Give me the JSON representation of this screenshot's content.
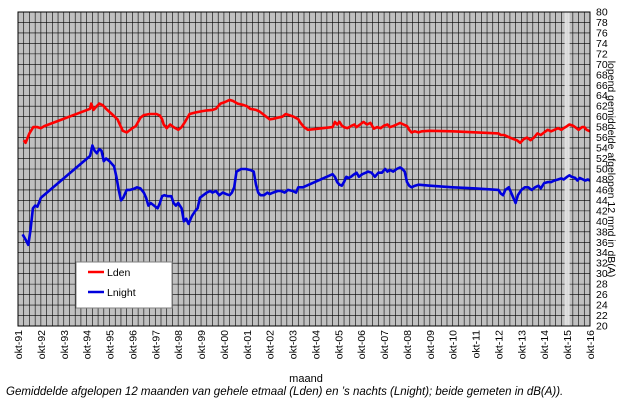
{
  "chart_data": {
    "type": "line",
    "xlabel": "maand",
    "ylabel": "lopend gemiddelde afgelopen 12 mnd in dB(A)",
    "ylim": [
      20,
      80
    ],
    "y_ticks": [
      20,
      22,
      24,
      26,
      28,
      30,
      32,
      34,
      36,
      38,
      40,
      42,
      44,
      46,
      48,
      50,
      52,
      54,
      56,
      58,
      60,
      62,
      64,
      66,
      68,
      70,
      72,
      74,
      76,
      78,
      80
    ],
    "x_tick_labels": [
      "okt-91",
      "okt-92",
      "okt-93",
      "okt-94",
      "okt-95",
      "okt-96",
      "okt-97",
      "okt-98",
      "okt-99",
      "okt-00",
      "okt-01",
      "okt-02",
      "okt-03",
      "okt-04",
      "okt-05",
      "okt-06",
      "okt-07",
      "okt-08",
      "okt-09",
      "okt-10",
      "okt-11",
      "okt-12",
      "okt-13",
      "okt-14",
      "okt-15",
      "okt-16"
    ],
    "x_ticks": [
      1991.75,
      1992.75,
      1993.75,
      1994.75,
      1995.75,
      1996.75,
      1997.75,
      1998.75,
      1999.75,
      2000.75,
      2001.75,
      2002.75,
      2003.75,
      2004.75,
      2005.75,
      2006.75,
      2007.75,
      2008.75,
      2009.75,
      2010.75,
      2011.75,
      2012.75,
      2013.75,
      2014.75,
      2015.75,
      2016.75
    ],
    "xlim": [
      1991.75,
      2016.75
    ],
    "grid": true,
    "highlight_x": 2015.75,
    "legend_position": "lower-left",
    "series": [
      {
        "name": "Lden",
        "color": "#ff0000",
        "points": [
          [
            1992.0,
            55.5
          ],
          [
            1992.08,
            55.0
          ],
          [
            1992.25,
            56.8
          ],
          [
            1992.42,
            58.0
          ],
          [
            1992.6,
            58.0
          ],
          [
            1992.75,
            57.8
          ],
          [
            1992.9,
            58.2
          ],
          [
            1994.9,
            61.5
          ],
          [
            1994.95,
            62.5
          ],
          [
            1995.05,
            61.3
          ],
          [
            1995.15,
            61.8
          ],
          [
            1995.3,
            62.5
          ],
          [
            1995.45,
            62.2
          ],
          [
            1995.6,
            61.5
          ],
          [
            1995.85,
            60.5
          ],
          [
            1996.1,
            59.5
          ],
          [
            1996.2,
            58.5
          ],
          [
            1996.33,
            57.3
          ],
          [
            1996.5,
            57.0
          ],
          [
            1996.75,
            57.8
          ],
          [
            1996.9,
            58.2
          ],
          [
            1997.1,
            59.8
          ],
          [
            1997.25,
            60.3
          ],
          [
            1997.5,
            60.5
          ],
          [
            1997.8,
            60.5
          ],
          [
            1997.95,
            60.2
          ],
          [
            1998.05,
            59.5
          ],
          [
            1998.12,
            58.5
          ],
          [
            1998.25,
            57.8
          ],
          [
            1998.4,
            58.5
          ],
          [
            1998.55,
            58.0
          ],
          [
            1998.75,
            57.5
          ],
          [
            1998.9,
            58.0
          ],
          [
            1999.05,
            59.0
          ],
          [
            1999.25,
            60.5
          ],
          [
            1999.5,
            60.8
          ],
          [
            1999.75,
            61.0
          ],
          [
            2000.0,
            61.2
          ],
          [
            2000.25,
            61.3
          ],
          [
            2000.4,
            61.5
          ],
          [
            2000.6,
            62.5
          ],
          [
            2000.8,
            62.8
          ],
          [
            2001.0,
            63.2
          ],
          [
            2001.15,
            63.0
          ],
          [
            2001.35,
            62.5
          ],
          [
            2001.55,
            62.3
          ],
          [
            2001.75,
            62.0
          ],
          [
            2001.9,
            61.5
          ],
          [
            2002.15,
            61.3
          ],
          [
            2002.3,
            61.0
          ],
          [
            2002.45,
            60.5
          ],
          [
            2002.6,
            60.0
          ],
          [
            2002.75,
            59.5
          ],
          [
            2002.9,
            59.6
          ],
          [
            2003.1,
            59.8
          ],
          [
            2003.3,
            60.0
          ],
          [
            2003.45,
            60.5
          ],
          [
            2003.6,
            60.3
          ],
          [
            2003.8,
            60.0
          ],
          [
            2004.0,
            59.5
          ],
          [
            2004.1,
            58.8
          ],
          [
            2004.25,
            58.0
          ],
          [
            2004.42,
            57.5
          ],
          [
            2005.5,
            58.0
          ],
          [
            2005.6,
            59.0
          ],
          [
            2005.7,
            58.5
          ],
          [
            2005.8,
            59.0
          ],
          [
            2005.9,
            58.3
          ],
          [
            2006.0,
            58.0
          ],
          [
            2006.15,
            57.8
          ],
          [
            2006.3,
            58.2
          ],
          [
            2006.45,
            58.5
          ],
          [
            2006.55,
            58.0
          ],
          [
            2006.7,
            58.5
          ],
          [
            2006.85,
            59.0
          ],
          [
            2007.0,
            58.5
          ],
          [
            2007.15,
            58.8
          ],
          [
            2007.3,
            57.7
          ],
          [
            2007.45,
            58.0
          ],
          [
            2007.6,
            57.8
          ],
          [
            2007.75,
            58.3
          ],
          [
            2007.9,
            58.5
          ],
          [
            2008.0,
            58.0
          ],
          [
            2008.15,
            58.2
          ],
          [
            2008.3,
            58.5
          ],
          [
            2008.45,
            58.8
          ],
          [
            2008.6,
            58.5
          ],
          [
            2008.75,
            58.2
          ],
          [
            2008.85,
            57.5
          ],
          [
            2008.95,
            57.0
          ],
          [
            2009.1,
            57.2
          ],
          [
            2009.25,
            57.0
          ],
          [
            2009.4,
            57.2
          ],
          [
            2009.75,
            57.3
          ],
          [
            2010.75,
            57.2
          ],
          [
            2012.75,
            56.8
          ],
          [
            2012.85,
            56.5
          ],
          [
            2013.0,
            56.5
          ],
          [
            2013.15,
            56.2
          ],
          [
            2013.35,
            55.8
          ],
          [
            2013.55,
            55.5
          ],
          [
            2013.7,
            55.0
          ],
          [
            2013.85,
            55.7
          ],
          [
            2014.0,
            56.0
          ],
          [
            2014.15,
            55.5
          ],
          [
            2014.3,
            56.0
          ],
          [
            2014.45,
            56.8
          ],
          [
            2014.6,
            56.5
          ],
          [
            2014.75,
            57.0
          ],
          [
            2014.9,
            57.5
          ],
          [
            2015.05,
            57.2
          ],
          [
            2015.2,
            57.5
          ],
          [
            2015.35,
            57.8
          ],
          [
            2015.5,
            57.5
          ],
          [
            2015.6,
            57.8
          ],
          [
            2015.75,
            58.2
          ],
          [
            2015.85,
            58.5
          ],
          [
            2016.0,
            58.3
          ],
          [
            2016.1,
            58.0
          ],
          [
            2016.25,
            57.5
          ],
          [
            2016.4,
            58.0
          ],
          [
            2016.5,
            58.0
          ],
          [
            2016.6,
            57.5
          ],
          [
            2016.75,
            57.2
          ]
        ]
      },
      {
        "name": "Lnight",
        "color": "#0000dd",
        "points": [
          [
            1991.95,
            37.5
          ],
          [
            1992.08,
            36.5
          ],
          [
            1992.2,
            35.5
          ],
          [
            1992.3,
            38.5
          ],
          [
            1992.4,
            42.5
          ],
          [
            1992.5,
            43.0
          ],
          [
            1992.6,
            42.8
          ],
          [
            1992.75,
            44.5
          ],
          [
            1994.9,
            52.5
          ],
          [
            1995.0,
            54.5
          ],
          [
            1995.1,
            53.5
          ],
          [
            1995.2,
            53.0
          ],
          [
            1995.3,
            53.8
          ],
          [
            1995.4,
            53.5
          ],
          [
            1995.5,
            51.5
          ],
          [
            1995.6,
            52.0
          ],
          [
            1995.75,
            51.5
          ],
          [
            1995.85,
            51.0
          ],
          [
            1995.95,
            50.5
          ],
          [
            1996.05,
            48.5
          ],
          [
            1996.15,
            46.0
          ],
          [
            1996.25,
            44.0
          ],
          [
            1996.35,
            44.5
          ],
          [
            1996.5,
            46.0
          ],
          [
            1996.65,
            46.0
          ],
          [
            1996.8,
            46.2
          ],
          [
            1996.95,
            46.5
          ],
          [
            1997.1,
            46.3
          ],
          [
            1997.25,
            45.5
          ],
          [
            1997.35,
            44.5
          ],
          [
            1997.45,
            43.0
          ],
          [
            1997.55,
            43.5
          ],
          [
            1997.7,
            43.0
          ],
          [
            1997.85,
            42.5
          ],
          [
            1997.95,
            43.5
          ],
          [
            1998.05,
            44.8
          ],
          [
            1998.15,
            45.0
          ],
          [
            1998.3,
            44.8
          ],
          [
            1998.45,
            44.8
          ],
          [
            1998.55,
            43.5
          ],
          [
            1998.65,
            43.0
          ],
          [
            1998.75,
            43.5
          ],
          [
            1998.9,
            42.5
          ],
          [
            1999.0,
            40.0
          ],
          [
            1999.1,
            40.5
          ],
          [
            1999.2,
            39.5
          ],
          [
            1999.35,
            41.0
          ],
          [
            1999.5,
            42.0
          ],
          [
            1999.6,
            42.5
          ],
          [
            1999.7,
            44.5
          ],
          [
            1999.85,
            45.0
          ],
          [
            2000.0,
            45.5
          ],
          [
            2000.15,
            45.8
          ],
          [
            2000.25,
            45.5
          ],
          [
            2000.4,
            45.8
          ],
          [
            2000.55,
            45.0
          ],
          [
            2000.7,
            45.5
          ],
          [
            2000.85,
            45.2
          ],
          [
            2001.0,
            45.0
          ],
          [
            2001.1,
            45.5
          ],
          [
            2001.2,
            46.5
          ],
          [
            2001.3,
            49.5
          ],
          [
            2001.5,
            50.0
          ],
          [
            2001.7,
            50.0
          ],
          [
            2001.9,
            49.8
          ],
          [
            2002.05,
            49.5
          ],
          [
            2002.15,
            47.0
          ],
          [
            2002.25,
            45.5
          ],
          [
            2002.35,
            45.0
          ],
          [
            2002.5,
            45.0
          ],
          [
            2002.65,
            45.5
          ],
          [
            2002.75,
            45.2
          ],
          [
            2002.9,
            45.5
          ],
          [
            2003.1,
            45.8
          ],
          [
            2003.25,
            45.8
          ],
          [
            2003.4,
            45.5
          ],
          [
            2003.55,
            46.0
          ],
          [
            2003.75,
            45.8
          ],
          [
            2003.9,
            45.5
          ],
          [
            2004.0,
            46.5
          ],
          [
            2004.2,
            46.5
          ],
          [
            2005.5,
            49.0
          ],
          [
            2005.6,
            48.5
          ],
          [
            2005.7,
            47.5
          ],
          [
            2005.8,
            47.0
          ],
          [
            2005.9,
            46.8
          ],
          [
            2006.0,
            47.5
          ],
          [
            2006.1,
            48.5
          ],
          [
            2006.2,
            48.3
          ],
          [
            2006.3,
            48.5
          ],
          [
            2006.45,
            49.0
          ],
          [
            2006.55,
            49.3
          ],
          [
            2006.65,
            48.5
          ],
          [
            2006.8,
            49.0
          ],
          [
            2006.95,
            49.3
          ],
          [
            2007.05,
            49.5
          ],
          [
            2007.2,
            49.3
          ],
          [
            2007.35,
            48.5
          ],
          [
            2007.5,
            49.3
          ],
          [
            2007.65,
            49.3
          ],
          [
            2007.8,
            50.0
          ],
          [
            2007.9,
            49.5
          ],
          [
            2008.0,
            49.8
          ],
          [
            2008.15,
            49.5
          ],
          [
            2008.3,
            50.0
          ],
          [
            2008.45,
            50.3
          ],
          [
            2008.55,
            50.0
          ],
          [
            2008.65,
            49.5
          ],
          [
            2008.75,
            47.5
          ],
          [
            2008.85,
            46.8
          ],
          [
            2008.95,
            46.5
          ],
          [
            2009.1,
            46.8
          ],
          [
            2009.25,
            47.0
          ],
          [
            2009.75,
            46.8
          ],
          [
            2010.75,
            46.5
          ],
          [
            2011.75,
            46.3
          ],
          [
            2012.75,
            46.0
          ],
          [
            2012.85,
            45.3
          ],
          [
            2012.95,
            45.0
          ],
          [
            2013.05,
            46.0
          ],
          [
            2013.2,
            46.5
          ],
          [
            2013.35,
            45.0
          ],
          [
            2013.5,
            43.5
          ],
          [
            2013.6,
            45.0
          ],
          [
            2013.75,
            46.0
          ],
          [
            2013.9,
            46.5
          ],
          [
            2014.05,
            46.5
          ],
          [
            2014.2,
            46.0
          ],
          [
            2014.35,
            46.5
          ],
          [
            2014.5,
            46.8
          ],
          [
            2014.6,
            46.3
          ],
          [
            2014.75,
            47.3
          ],
          [
            2014.9,
            47.5
          ],
          [
            2015.05,
            47.5
          ],
          [
            2015.2,
            47.8
          ],
          [
            2015.35,
            48.0
          ],
          [
            2015.5,
            48.2
          ],
          [
            2015.6,
            48.0
          ],
          [
            2015.75,
            48.5
          ],
          [
            2015.85,
            48.8
          ],
          [
            2015.95,
            48.5
          ],
          [
            2016.1,
            48.3
          ],
          [
            2016.2,
            47.8
          ],
          [
            2016.3,
            48.3
          ],
          [
            2016.45,
            48.0
          ],
          [
            2016.55,
            47.8
          ],
          [
            2016.65,
            48.0
          ],
          [
            2016.75,
            47.8
          ]
        ]
      }
    ]
  },
  "caption": {
    "text": "Gemiddelde afgelopen 12 maanden van gehele etmaal (Lden) en ’s nachts (Lnight); beide gemeten in dB(A))."
  }
}
